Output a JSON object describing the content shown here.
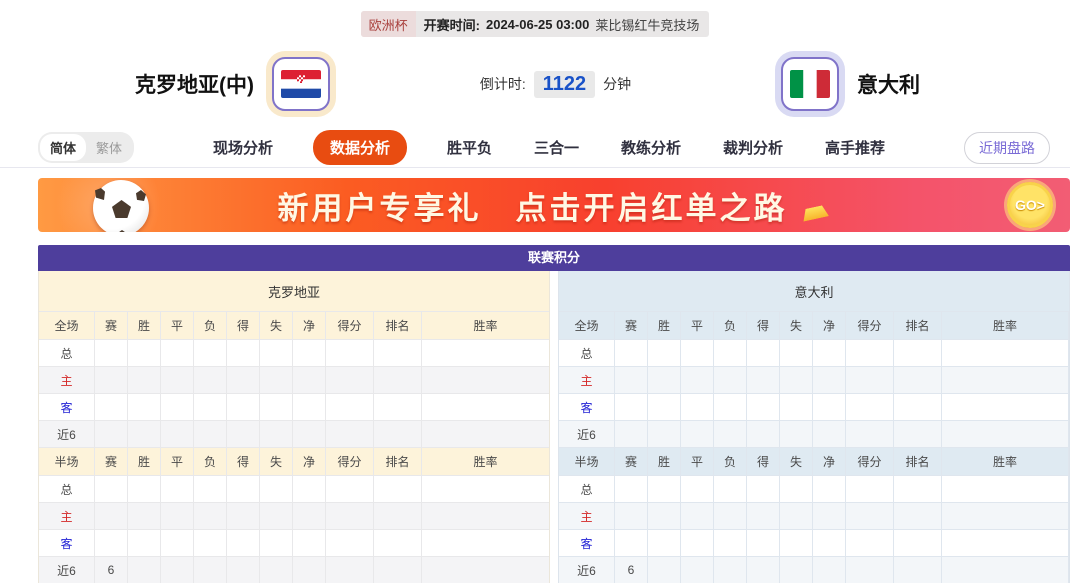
{
  "top_bar": {
    "league_badge": "欧洲杯",
    "kickoff_label": "开赛时间:",
    "kickoff_time": "2024-06-25 03:00",
    "venue": "莱比锡红牛竞技场"
  },
  "match": {
    "home_name": "克罗地亚(中)",
    "away_name": "意大利",
    "home_flag": "croatia-flag",
    "away_flag": "italy-flag",
    "countdown_label": "倒计时:",
    "countdown_value": "1122",
    "countdown_unit": "分钟"
  },
  "nav": {
    "lang_simplified": "简体",
    "lang_traditional": "繁体",
    "tabs": [
      {
        "label": "现场分析",
        "active": false
      },
      {
        "label": "数据分析",
        "active": true
      },
      {
        "label": "胜平负",
        "active": false
      },
      {
        "label": "三合一",
        "active": false
      },
      {
        "label": "教练分析",
        "active": false
      },
      {
        "label": "裁判分析",
        "active": false
      },
      {
        "label": "高手推荐",
        "active": false
      }
    ],
    "recent_button": "近期盘路"
  },
  "banner": {
    "title": "新用户专享礼",
    "subtitle": "点击开启红单之路",
    "go_label": "GO>"
  },
  "colors": {
    "accent_orange": "#e84c11",
    "table_purple": "#4e3e9c",
    "home_theme": "#fdf3da",
    "away_theme": "#dfeaf2",
    "countdown_blue": "#1952c8",
    "home_row_red": "#d42a2a",
    "away_row_blue": "#1f1fd4"
  },
  "league_table": {
    "title": "联赛积分",
    "halves": [
      {
        "team": "克罗地亚",
        "theme": "home",
        "sections": [
          {
            "scope_label": "全场",
            "columns": [
              "赛",
              "胜",
              "平",
              "负",
              "得",
              "失",
              "净",
              "得分",
              "排名",
              "胜率"
            ],
            "rows": [
              {
                "label": "总",
                "color": "default",
                "cells": [
                  "",
                  "",
                  "",
                  "",
                  "",
                  "",
                  "",
                  "",
                  "",
                  ""
                ]
              },
              {
                "label": "主",
                "color": "red",
                "cells": [
                  "",
                  "",
                  "",
                  "",
                  "",
                  "",
                  "",
                  "",
                  "",
                  ""
                ]
              },
              {
                "label": "客",
                "color": "blue",
                "cells": [
                  "",
                  "",
                  "",
                  "",
                  "",
                  "",
                  "",
                  "",
                  "",
                  ""
                ]
              },
              {
                "label": "近6",
                "color": "default",
                "cells": [
                  "",
                  "",
                  "",
                  "",
                  "",
                  "",
                  "",
                  "",
                  "",
                  ""
                ]
              }
            ]
          },
          {
            "scope_label": "半场",
            "columns": [
              "赛",
              "胜",
              "平",
              "负",
              "得",
              "失",
              "净",
              "得分",
              "排名",
              "胜率"
            ],
            "rows": [
              {
                "label": "总",
                "color": "default",
                "cells": [
                  "",
                  "",
                  "",
                  "",
                  "",
                  "",
                  "",
                  "",
                  "",
                  ""
                ]
              },
              {
                "label": "主",
                "color": "red",
                "cells": [
                  "",
                  "",
                  "",
                  "",
                  "",
                  "",
                  "",
                  "",
                  "",
                  ""
                ]
              },
              {
                "label": "客",
                "color": "blue",
                "cells": [
                  "",
                  "",
                  "",
                  "",
                  "",
                  "",
                  "",
                  "",
                  "",
                  ""
                ]
              },
              {
                "label": "近6",
                "color": "default",
                "cells": [
                  "6",
                  "",
                  "",
                  "",
                  "",
                  "",
                  "",
                  "",
                  "",
                  ""
                ]
              }
            ]
          }
        ]
      },
      {
        "team": "意大利",
        "theme": "away",
        "sections": [
          {
            "scope_label": "全场",
            "columns": [
              "赛",
              "胜",
              "平",
              "负",
              "得",
              "失",
              "净",
              "得分",
              "排名",
              "胜率"
            ],
            "rows": [
              {
                "label": "总",
                "color": "default",
                "cells": [
                  "",
                  "",
                  "",
                  "",
                  "",
                  "",
                  "",
                  "",
                  "",
                  ""
                ]
              },
              {
                "label": "主",
                "color": "red",
                "cells": [
                  "",
                  "",
                  "",
                  "",
                  "",
                  "",
                  "",
                  "",
                  "",
                  ""
                ]
              },
              {
                "label": "客",
                "color": "blue",
                "cells": [
                  "",
                  "",
                  "",
                  "",
                  "",
                  "",
                  "",
                  "",
                  "",
                  ""
                ]
              },
              {
                "label": "近6",
                "color": "default",
                "cells": [
                  "",
                  "",
                  "",
                  "",
                  "",
                  "",
                  "",
                  "",
                  "",
                  ""
                ]
              }
            ]
          },
          {
            "scope_label": "半场",
            "columns": [
              "赛",
              "胜",
              "平",
              "负",
              "得",
              "失",
              "净",
              "得分",
              "排名",
              "胜率"
            ],
            "rows": [
              {
                "label": "总",
                "color": "default",
                "cells": [
                  "",
                  "",
                  "",
                  "",
                  "",
                  "",
                  "",
                  "",
                  "",
                  ""
                ]
              },
              {
                "label": "主",
                "color": "red",
                "cells": [
                  "",
                  "",
                  "",
                  "",
                  "",
                  "",
                  "",
                  "",
                  "",
                  ""
                ]
              },
              {
                "label": "客",
                "color": "blue",
                "cells": [
                  "",
                  "",
                  "",
                  "",
                  "",
                  "",
                  "",
                  "",
                  "",
                  ""
                ]
              },
              {
                "label": "近6",
                "color": "default",
                "cells": [
                  "6",
                  "",
                  "",
                  "",
                  "",
                  "",
                  "",
                  "",
                  "",
                  ""
                ]
              }
            ]
          }
        ]
      }
    ]
  }
}
